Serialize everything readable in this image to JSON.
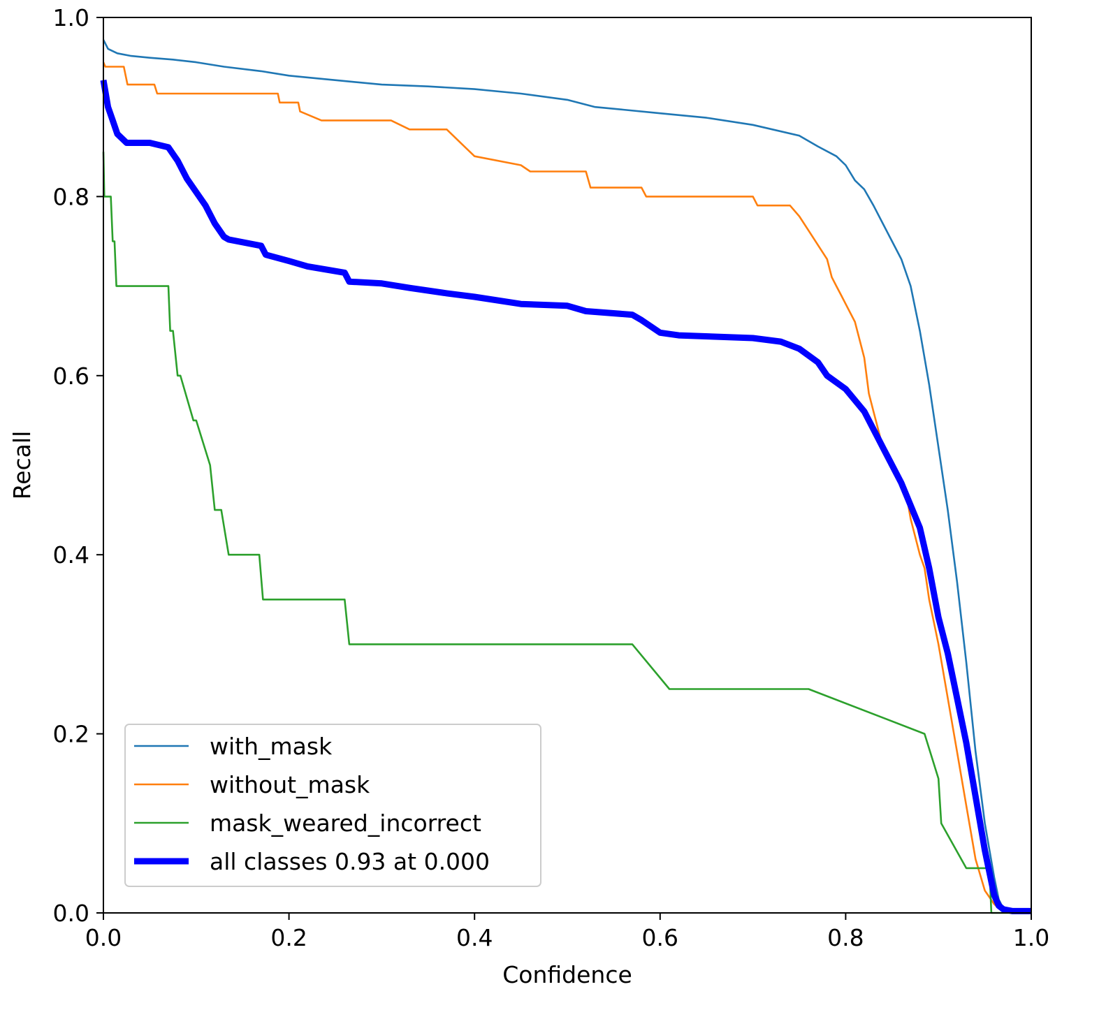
{
  "chart_data": {
    "type": "line",
    "title": "",
    "xlabel": "Confidence",
    "ylabel": "Recall",
    "xlim": [
      0,
      1
    ],
    "ylim": [
      0,
      1
    ],
    "xticks": [
      "0.0",
      "0.2",
      "0.4",
      "0.6",
      "0.8",
      "1.0"
    ],
    "yticks": [
      "0.0",
      "0.2",
      "0.4",
      "0.6",
      "0.8",
      "1.0"
    ],
    "xtick_values": [
      0,
      0.2,
      0.4,
      0.6,
      0.8,
      1.0
    ],
    "ytick_values": [
      0,
      0.2,
      0.4,
      0.6,
      0.8,
      1.0
    ],
    "grid": false,
    "legend_position": "bottom-left",
    "series": [
      {
        "name": "with_mask",
        "color": "#1f77b4",
        "x": [
          0,
          0.005,
          0.015,
          0.03,
          0.05,
          0.075,
          0.1,
          0.13,
          0.17,
          0.2,
          0.23,
          0.27,
          0.3,
          0.35,
          0.4,
          0.45,
          0.5,
          0.53,
          0.56,
          0.6,
          0.65,
          0.7,
          0.75,
          0.77,
          0.79,
          0.8,
          0.81,
          0.82,
          0.83,
          0.84,
          0.85,
          0.86,
          0.87,
          0.88,
          0.89,
          0.9,
          0.91,
          0.92,
          0.93,
          0.94,
          0.95,
          0.96,
          0.965,
          0.97,
          0.98,
          1.0
        ],
        "y": [
          0.975,
          0.965,
          0.96,
          0.957,
          0.955,
          0.953,
          0.95,
          0.945,
          0.94,
          0.935,
          0.932,
          0.928,
          0.925,
          0.923,
          0.92,
          0.915,
          0.908,
          0.9,
          0.897,
          0.893,
          0.888,
          0.88,
          0.868,
          0.856,
          0.845,
          0.835,
          0.818,
          0.808,
          0.79,
          0.77,
          0.75,
          0.73,
          0.7,
          0.65,
          0.59,
          0.52,
          0.45,
          0.37,
          0.28,
          0.18,
          0.1,
          0.04,
          0.015,
          0.005,
          0.002,
          0.002
        ]
      },
      {
        "name": "without_mask",
        "color": "#ff7f0e",
        "x": [
          0,
          0.002,
          0.022,
          0.026,
          0.055,
          0.058,
          0.188,
          0.19,
          0.21,
          0.212,
          0.235,
          0.31,
          0.33,
          0.37,
          0.38,
          0.39,
          0.4,
          0.45,
          0.46,
          0.52,
          0.525,
          0.58,
          0.585,
          0.7,
          0.705,
          0.74,
          0.75,
          0.76,
          0.78,
          0.785,
          0.79,
          0.795,
          0.8,
          0.81,
          0.82,
          0.825,
          0.83,
          0.835,
          0.84,
          0.85,
          0.86,
          0.865,
          0.87,
          0.88,
          0.885,
          0.89,
          0.9,
          0.91,
          0.92,
          0.93,
          0.94,
          0.95,
          0.96,
          0.965,
          0.97,
          0.98,
          1.0
        ],
        "y": [
          0.95,
          0.945,
          0.945,
          0.925,
          0.925,
          0.915,
          0.915,
          0.905,
          0.905,
          0.895,
          0.885,
          0.885,
          0.875,
          0.875,
          0.865,
          0.855,
          0.845,
          0.835,
          0.828,
          0.828,
          0.81,
          0.81,
          0.8,
          0.8,
          0.79,
          0.79,
          0.778,
          0.762,
          0.73,
          0.71,
          0.7,
          0.69,
          0.68,
          0.66,
          0.62,
          0.58,
          0.56,
          0.54,
          0.52,
          0.5,
          0.485,
          0.47,
          0.44,
          0.4,
          0.385,
          0.35,
          0.3,
          0.24,
          0.18,
          0.12,
          0.06,
          0.025,
          0.01,
          0.005,
          0.002,
          0.002,
          0.002
        ]
      },
      {
        "name": "mask_weared_incorrect",
        "color": "#2ca02c",
        "x": [
          0,
          0.001,
          0.008,
          0.01,
          0.012,
          0.014,
          0.07,
          0.072,
          0.075,
          0.08,
          0.083,
          0.097,
          0.1,
          0.115,
          0.12,
          0.127,
          0.135,
          0.168,
          0.172,
          0.26,
          0.265,
          0.57,
          0.61,
          0.76,
          0.885,
          0.9,
          0.903,
          0.93,
          0.955,
          0.957,
          1.0
        ],
        "y": [
          0.85,
          0.8,
          0.8,
          0.75,
          0.75,
          0.7,
          0.7,
          0.65,
          0.65,
          0.6,
          0.6,
          0.55,
          0.55,
          0.5,
          0.45,
          0.45,
          0.4,
          0.4,
          0.35,
          0.35,
          0.3,
          0.3,
          0.25,
          0.25,
          0.2,
          0.15,
          0.1,
          0.05,
          0.05,
          0.0,
          0.0
        ]
      },
      {
        "name": "all classes 0.93 at 0.000",
        "color": "#0000ff",
        "bold": true,
        "x": [
          0,
          0.005,
          0.01,
          0.015,
          0.025,
          0.05,
          0.07,
          0.08,
          0.09,
          0.1,
          0.11,
          0.12,
          0.13,
          0.135,
          0.17,
          0.175,
          0.2,
          0.22,
          0.26,
          0.265,
          0.3,
          0.33,
          0.37,
          0.4,
          0.45,
          0.5,
          0.52,
          0.57,
          0.58,
          0.6,
          0.62,
          0.7,
          0.73,
          0.75,
          0.77,
          0.78,
          0.8,
          0.82,
          0.84,
          0.85,
          0.86,
          0.87,
          0.88,
          0.89,
          0.9,
          0.91,
          0.92,
          0.93,
          0.94,
          0.95,
          0.96,
          0.965,
          0.97,
          0.98,
          1.0
        ],
        "y": [
          0.93,
          0.9,
          0.885,
          0.87,
          0.86,
          0.86,
          0.855,
          0.84,
          0.82,
          0.805,
          0.79,
          0.77,
          0.755,
          0.752,
          0.745,
          0.735,
          0.728,
          0.722,
          0.715,
          0.705,
          0.703,
          0.698,
          0.692,
          0.688,
          0.68,
          0.678,
          0.672,
          0.668,
          0.662,
          0.648,
          0.645,
          0.642,
          0.638,
          0.63,
          0.615,
          0.6,
          0.585,
          0.56,
          0.52,
          0.5,
          0.48,
          0.455,
          0.43,
          0.385,
          0.33,
          0.29,
          0.24,
          0.19,
          0.13,
          0.07,
          0.02,
          0.008,
          0.004,
          0.002,
          0.002
        ]
      }
    ]
  }
}
